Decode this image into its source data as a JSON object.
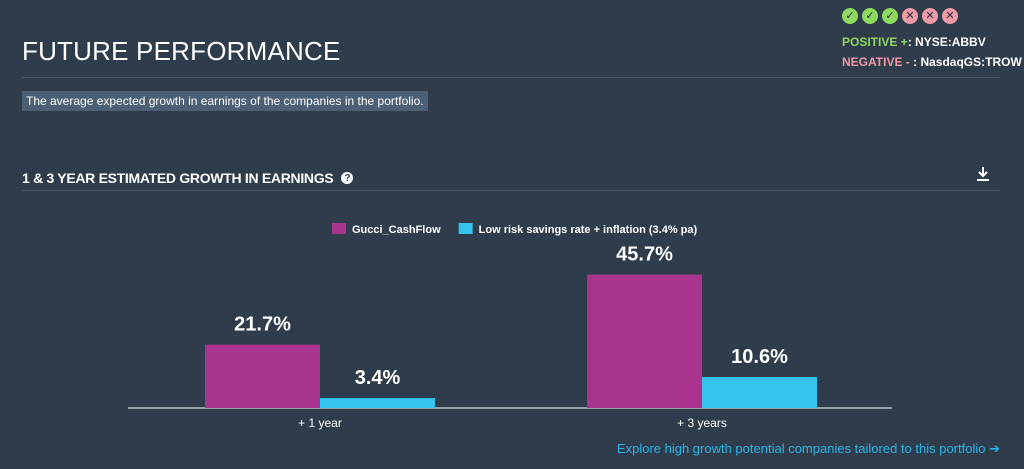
{
  "header": {
    "title": "FUTURE PERFORMANCE",
    "description": "The average expected growth in earnings of the companies in the portfolio."
  },
  "checks": {
    "badges": [
      "pass",
      "pass",
      "pass",
      "fail",
      "fail",
      "fail"
    ],
    "positive_label": "POSITIVE +",
    "positive_value": ": NYSE:ABBV",
    "negative_label": "NEGATIVE -",
    "negative_value": " : NasdaqGS:TROW",
    "pass_color": "#8fd95f",
    "fail_color": "#ef9aa6"
  },
  "section": {
    "heading": "1 & 3 YEAR ESTIMATED GROWTH IN EARNINGS"
  },
  "chart_data": {
    "type": "bar",
    "categories": [
      "+ 1 year",
      "+ 3 years"
    ],
    "series": [
      {
        "name": "Gucci_CashFlow",
        "values": [
          21.7,
          45.7
        ],
        "labels": [
          "21.7%",
          "45.7%"
        ],
        "color": "#a8348f"
      },
      {
        "name": "Low risk savings rate + inflation (3.4% pa)",
        "values": [
          3.4,
          10.6
        ],
        "labels": [
          "3.4%",
          "10.6%"
        ],
        "color": "#35c3f0"
      }
    ],
    "ylim": [
      0,
      50
    ],
    "legend_position": "top-center",
    "grid": false
  },
  "footer": {
    "explore_link": "Explore high growth potential companies tailored to this portfolio"
  }
}
